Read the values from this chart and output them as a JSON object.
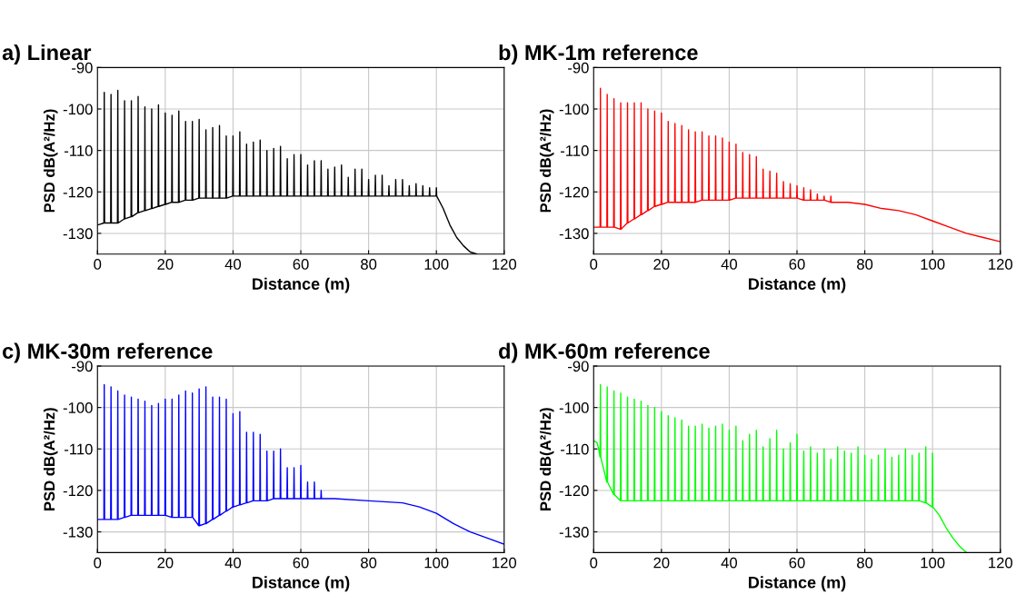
{
  "chart_data": [
    {
      "type": "line",
      "title": "a) Linear",
      "xlabel": "Distance (m)",
      "ylabel": "PSD dB(A²/Hz)",
      "xlim": [
        0,
        120
      ],
      "ylim": [
        -135,
        -90
      ],
      "xticks": [
        0,
        20,
        40,
        60,
        80,
        100,
        120
      ],
      "yticks": [
        -90,
        -100,
        -110,
        -120,
        -130
      ],
      "grid": true,
      "series": [
        {
          "color": "#000000",
          "x": [
            0,
            1.9,
            2,
            2.1,
            3.9,
            4,
            4.1,
            5.9,
            6,
            6.1,
            7.9,
            8,
            8.1,
            9.9,
            10,
            10.1,
            11.9,
            12,
            12.1,
            13.9,
            14,
            14.1,
            15.9,
            16,
            16.1,
            17.9,
            18,
            18.1,
            19.9,
            20,
            20.1,
            21.9,
            22,
            22.1,
            23.9,
            24,
            24.1,
            25.9,
            26,
            26.1,
            27.9,
            28,
            28.1,
            29.9,
            30,
            30.1,
            31.9,
            32,
            32.1,
            33.9,
            34,
            34.1,
            35.9,
            36,
            36.1,
            37.9,
            38,
            38.1,
            39.9,
            40,
            40.1,
            41.9,
            42,
            42.1,
            43.9,
            44,
            44.1,
            45.9,
            46,
            46.1,
            47.9,
            48,
            48.1,
            49.9,
            50,
            50.1,
            51.9,
            52,
            52.1,
            53.9,
            54,
            54.1,
            55.9,
            56,
            56.1,
            57.9,
            58,
            58.1,
            59.9,
            60,
            60.1,
            61.9,
            62,
            62.1,
            63.9,
            64,
            64.1,
            65.9,
            66,
            66.1,
            67.9,
            68,
            68.1,
            69.9,
            70,
            70.1,
            71.9,
            72,
            72.1,
            73.9,
            74,
            74.1,
            75.9,
            76,
            76.1,
            77.9,
            78,
            78.1,
            79.9,
            80,
            80.1,
            81.9,
            82,
            82.1,
            83.9,
            84,
            84.1,
            85.9,
            86,
            86.1,
            87.9,
            88,
            88.1,
            89.9,
            90,
            90.1,
            91.9,
            92,
            92.1,
            93.9,
            94,
            94.1,
            95.9,
            96,
            96.1,
            97.9,
            98,
            98.1,
            99.9,
            100,
            100.1,
            102,
            104,
            106,
            108,
            110,
            112
          ],
          "values": [
            -128,
            -127.5,
            -96,
            -127.5,
            -127.5,
            -96.5,
            -127.5,
            -127.5,
            -95.5,
            -127.5,
            -126.5,
            -98,
            -126.5,
            -126,
            -98,
            -126,
            -125,
            -97,
            -125,
            -124.5,
            -99.5,
            -124.5,
            -124,
            -100,
            -124,
            -123.5,
            -99,
            -123.5,
            -123,
            -101,
            -123,
            -122.5,
            -101.5,
            -122.5,
            -122.5,
            -100.5,
            -122.5,
            -122,
            -103,
            -122,
            -122,
            -103,
            -122,
            -121.5,
            -102.5,
            -121.5,
            -121.5,
            -105,
            -121.5,
            -121.5,
            -104.5,
            -121.5,
            -121.5,
            -104,
            -121.5,
            -121.5,
            -106.5,
            -121.5,
            -121,
            -106.5,
            -121,
            -121,
            -105.5,
            -121,
            -121,
            -108.5,
            -121,
            -121,
            -108,
            -121,
            -121,
            -107.5,
            -121,
            -121,
            -110,
            -121,
            -121,
            -109.5,
            -121,
            -121,
            -109,
            -121,
            -121,
            -112,
            -121,
            -121,
            -111,
            -121,
            -121,
            -111,
            -121,
            -121,
            -113.5,
            -121,
            -121,
            -112.5,
            -121,
            -121,
            -112.5,
            -121,
            -121,
            -114.5,
            -121,
            -121,
            -114,
            -121,
            -121,
            -113.5,
            -121,
            -121,
            -116.5,
            -121,
            -121,
            -114.5,
            -121,
            -121,
            -114.5,
            -121,
            -121,
            -117,
            -121,
            -121,
            -116,
            -121,
            -121,
            -116,
            -121,
            -121,
            -118.5,
            -121,
            -121,
            -117,
            -121,
            -121,
            -117,
            -121,
            -121,
            -118.5,
            -121,
            -121,
            -118,
            -121,
            -121,
            -118.5,
            -121,
            -121,
            -119,
            -121,
            -121,
            -119,
            -121,
            -124,
            -128,
            -131,
            -133,
            -134.5,
            -135
          ]
        }
      ]
    },
    {
      "type": "line",
      "title": "b) MK-1m reference",
      "xlabel": "Distance (m)",
      "ylabel": "PSD dB(A²/Hz)",
      "xlim": [
        0,
        120
      ],
      "ylim": [
        -135,
        -90
      ],
      "xticks": [
        0,
        20,
        40,
        60,
        80,
        100,
        120
      ],
      "yticks": [
        -90,
        -100,
        -110,
        -120,
        -130
      ],
      "grid": true,
      "series": [
        {
          "color": "#ff0000",
          "x": [
            0,
            1.9,
            2,
            2.1,
            3.9,
            4,
            4.1,
            5.9,
            6,
            6.1,
            7.9,
            8,
            8.1,
            9.9,
            10,
            10.1,
            11.9,
            12,
            12.1,
            13.9,
            14,
            14.1,
            15.9,
            16,
            16.1,
            17.9,
            18,
            18.1,
            19.9,
            20,
            20.1,
            21.9,
            22,
            22.1,
            23.9,
            24,
            24.1,
            25.9,
            26,
            26.1,
            27.9,
            28,
            28.1,
            29.9,
            30,
            30.1,
            31.9,
            32,
            32.1,
            33.9,
            34,
            34.1,
            35.9,
            36,
            36.1,
            37.9,
            38,
            38.1,
            39.9,
            40,
            40.1,
            41.9,
            42,
            42.1,
            43.9,
            44,
            44.1,
            45.9,
            46,
            46.1,
            47.9,
            48,
            48.1,
            49.9,
            50,
            50.1,
            51.9,
            52,
            52.1,
            53.9,
            54,
            54.1,
            55.9,
            56,
            56.1,
            57.9,
            58,
            58.1,
            59.9,
            60,
            60.1,
            61.9,
            62,
            62.1,
            63.9,
            64,
            64.1,
            65.9,
            66,
            66.1,
            67.9,
            68,
            68.1,
            69.9,
            70,
            70.1,
            75,
            80,
            85,
            90,
            95,
            100,
            105,
            110,
            115,
            120
          ],
          "values": [
            -128.5,
            -128.5,
            -95,
            -128.5,
            -128.5,
            -96.5,
            -128.5,
            -128.5,
            -97.5,
            -128.5,
            -129,
            -98.5,
            -129,
            -127.5,
            -98.5,
            -127.5,
            -126.5,
            -98.5,
            -126.5,
            -125.5,
            -98.5,
            -125.5,
            -124.5,
            -100,
            -124.5,
            -123.5,
            -100.5,
            -123.5,
            -123,
            -101,
            -123,
            -122.5,
            -103,
            -122.5,
            -122.5,
            -103.5,
            -122.5,
            -122.5,
            -104,
            -122.5,
            -122.5,
            -105,
            -122.5,
            -122.5,
            -105.5,
            -122.5,
            -122,
            -105.5,
            -122,
            -122,
            -106.5,
            -122,
            -122,
            -106.5,
            -122,
            -122,
            -107,
            -122,
            -122,
            -108,
            -122,
            -121.5,
            -108.5,
            -121.5,
            -121.5,
            -110.5,
            -121.5,
            -121.5,
            -111,
            -121.5,
            -121.5,
            -111.5,
            -121.5,
            -121.5,
            -114.5,
            -121.5,
            -121.5,
            -115,
            -121.5,
            -121.5,
            -115.5,
            -121.5,
            -121.5,
            -117.5,
            -121.5,
            -121.5,
            -118,
            -121.5,
            -121.5,
            -118.5,
            -121.5,
            -122,
            -119,
            -122,
            -122,
            -119.5,
            -122,
            -122,
            -120.5,
            -122,
            -122,
            -121,
            -122,
            -122.5,
            -121,
            -122.5,
            -122.5,
            -123,
            -124,
            -124.5,
            -125.5,
            -127,
            -128.5,
            -130,
            -131,
            -132
          ]
        }
      ]
    },
    {
      "type": "line",
      "title": "c) MK-30m reference",
      "xlabel": "Distance (m)",
      "ylabel": "PSD dB(A²/Hz)",
      "xlim": [
        0,
        120
      ],
      "ylim": [
        -135,
        -90
      ],
      "xticks": [
        0,
        20,
        40,
        60,
        80,
        100,
        120
      ],
      "yticks": [
        -90,
        -100,
        -110,
        -120,
        -130
      ],
      "grid": true,
      "series": [
        {
          "color": "#0000ff",
          "x": [
            0,
            1.9,
            2,
            2.1,
            3.9,
            4,
            4.1,
            5.9,
            6,
            6.1,
            7.9,
            8,
            8.1,
            9.9,
            10,
            10.1,
            11.9,
            12,
            12.1,
            13.9,
            14,
            14.1,
            15.9,
            16,
            16.1,
            17.9,
            18,
            18.1,
            19.9,
            20,
            20.1,
            21.9,
            22,
            22.1,
            23.9,
            24,
            24.1,
            25.9,
            26,
            26.1,
            27.9,
            28,
            28.1,
            29.9,
            30,
            30.1,
            31.9,
            32,
            32.1,
            33.9,
            34,
            34.1,
            35.9,
            36,
            36.1,
            37.9,
            38,
            38.1,
            39.9,
            40,
            40.1,
            41.9,
            42,
            42.1,
            43.9,
            44,
            44.1,
            45.9,
            46,
            46.1,
            47.9,
            48,
            48.1,
            49.9,
            50,
            50.1,
            51.9,
            52,
            52.1,
            53.9,
            54,
            54.1,
            55.9,
            56,
            56.1,
            57.9,
            58,
            58.1,
            59.9,
            60,
            60.1,
            61.9,
            62,
            62.1,
            63.9,
            64,
            64.1,
            65.9,
            66,
            66.1,
            70,
            80,
            90,
            95,
            100,
            105,
            110,
            115,
            120
          ],
          "values": [
            -127,
            -127,
            -94.5,
            -127,
            -127,
            -95,
            -127,
            -127,
            -96,
            -127,
            -126.5,
            -97,
            -126.5,
            -126,
            -97.5,
            -126,
            -126,
            -98,
            -126,
            -126,
            -98.5,
            -126,
            -126,
            -99.5,
            -126,
            -126,
            -99,
            -126,
            -126,
            -98,
            -126,
            -126.5,
            -98,
            -126.5,
            -126.5,
            -97,
            -126.5,
            -126.5,
            -96,
            -126.5,
            -126.5,
            -96.5,
            -126.5,
            -128.5,
            -95.5,
            -128.5,
            -128,
            -95,
            -128,
            -127,
            -97.5,
            -127,
            -126,
            -97.5,
            -126,
            -125,
            -98,
            -125,
            -124,
            -101.5,
            -124,
            -123.5,
            -101,
            -123.5,
            -123,
            -106,
            -123,
            -122.5,
            -106,
            -122.5,
            -122.5,
            -106.5,
            -122.5,
            -122.5,
            -110.5,
            -122.5,
            -122,
            -110.5,
            -122,
            -122,
            -110,
            -122,
            -122,
            -114.5,
            -122,
            -122,
            -114.5,
            -122,
            -122,
            -114,
            -122,
            -122,
            -118,
            -122,
            -122,
            -118,
            -122,
            -122,
            -120,
            -122,
            -122,
            -122.5,
            -123,
            -124,
            -125.5,
            -128,
            -130,
            -131.5,
            -133
          ]
        }
      ]
    },
    {
      "type": "line",
      "title": "d) MK-60m reference",
      "xlabel": "Distance (m)",
      "ylabel": "PSD dB(A²/Hz)",
      "xlim": [
        0,
        120
      ],
      "ylim": [
        -135,
        -90
      ],
      "xticks": [
        0,
        20,
        40,
        60,
        80,
        100,
        120
      ],
      "yticks": [
        -90,
        -100,
        -110,
        -120,
        -130
      ],
      "grid": true,
      "series": [
        {
          "color": "#00ff00",
          "x": [
            0,
            1,
            1.5,
            1.9,
            2,
            2.1,
            3.9,
            4,
            4.1,
            5.9,
            6,
            6.1,
            7.9,
            8,
            8.1,
            9.9,
            10,
            10.1,
            11.9,
            12,
            12.1,
            13.9,
            14,
            14.1,
            15.9,
            16,
            16.1,
            17.9,
            18,
            18.1,
            19.9,
            20,
            20.1,
            21.9,
            22,
            22.1,
            23.9,
            24,
            24.1,
            25.9,
            26,
            26.1,
            27.9,
            28,
            28.1,
            29.9,
            30,
            30.1,
            31.9,
            32,
            32.1,
            33.9,
            34,
            34.1,
            35.9,
            36,
            36.1,
            37.9,
            38,
            38.1,
            39.9,
            40,
            40.1,
            41.9,
            42,
            42.1,
            43.9,
            44,
            44.1,
            45.9,
            46,
            46.1,
            47.9,
            48,
            48.1,
            49.9,
            50,
            50.1,
            51.9,
            52,
            52.1,
            53.9,
            54,
            54.1,
            55.9,
            56,
            56.1,
            57.9,
            58,
            58.1,
            59.9,
            60,
            60.1,
            61.9,
            62,
            62.1,
            63.9,
            64,
            64.1,
            65.9,
            66,
            66.1,
            67.9,
            68,
            68.1,
            69.9,
            70,
            70.1,
            71.9,
            72,
            72.1,
            73.9,
            74,
            74.1,
            75.9,
            76,
            76.1,
            77.9,
            78,
            78.1,
            79.9,
            80,
            80.1,
            81.9,
            82,
            82.1,
            83.9,
            84,
            84.1,
            85.9,
            86,
            86.1,
            87.9,
            88,
            88.1,
            89.9,
            90,
            90.1,
            91.9,
            92,
            92.1,
            93.9,
            94,
            94.1,
            95.9,
            96,
            96.1,
            97.9,
            98,
            98.1,
            99.9,
            100,
            100.1,
            102,
            104,
            106,
            108,
            110
          ],
          "values": [
            -108,
            -108.5,
            -110,
            -112,
            -94.5,
            -112,
            -118,
            -95,
            -118,
            -121,
            -96,
            -121,
            -122.5,
            -96.5,
            -122.5,
            -122.5,
            -97.5,
            -122.5,
            -122.5,
            -98,
            -122.5,
            -122.5,
            -98.5,
            -122.5,
            -122.5,
            -99.5,
            -122.5,
            -122.5,
            -100,
            -122.5,
            -122.5,
            -101,
            -122.5,
            -122.5,
            -102,
            -122.5,
            -122.5,
            -102.5,
            -122.5,
            -122.5,
            -103,
            -122.5,
            -122.5,
            -104.5,
            -122.5,
            -122.5,
            -104.5,
            -122.5,
            -122.5,
            -104,
            -122.5,
            -122.5,
            -105,
            -122.5,
            -122.5,
            -104.5,
            -122.5,
            -122.5,
            -104,
            -122.5,
            -122.5,
            -105.5,
            -122.5,
            -122.5,
            -104.5,
            -122.5,
            -122.5,
            -108,
            -122.5,
            -122.5,
            -106.5,
            -122.5,
            -122.5,
            -105.5,
            -122.5,
            -122.5,
            -109.5,
            -122.5,
            -122.5,
            -107.5,
            -122.5,
            -122.5,
            -105.5,
            -122.5,
            -122.5,
            -110,
            -122.5,
            -122.5,
            -108.5,
            -122.5,
            -122.5,
            -106.5,
            -122.5,
            -122.5,
            -110.5,
            -122.5,
            -122.5,
            -109.5,
            -122.5,
            -122.5,
            -111,
            -122.5,
            -122.5,
            -110,
            -122.5,
            -122.5,
            -112.5,
            -122.5,
            -122.5,
            -109.5,
            -122.5,
            -122.5,
            -110.5,
            -122.5,
            -122.5,
            -111,
            -122.5,
            -122.5,
            -109.5,
            -122.5,
            -122.5,
            -111.5,
            -122.5,
            -122.5,
            -112.5,
            -122.5,
            -122.5,
            -111.5,
            -122.5,
            -122.5,
            -110,
            -122.5,
            -122.5,
            -112,
            -122.5,
            -122.5,
            -111.5,
            -122.5,
            -122.5,
            -110,
            -122.5,
            -122.5,
            -111.5,
            -122.5,
            -122.5,
            -111,
            -122.5,
            -123,
            -109.5,
            -123,
            -124,
            -111,
            -124,
            -126,
            -129,
            -131.5,
            -133.5,
            -135
          ]
        }
      ]
    }
  ]
}
